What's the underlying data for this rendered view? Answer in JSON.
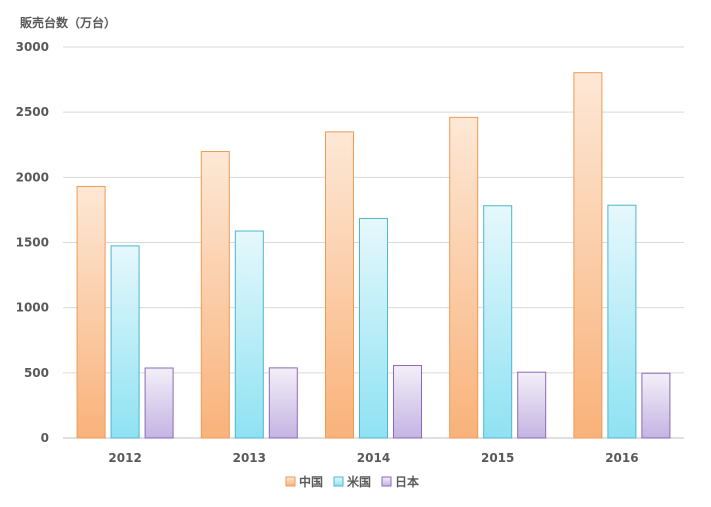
{
  "chart_data": {
    "type": "bar",
    "title": "",
    "ylabel": "販売台数（万台）",
    "xlabel": "",
    "categories": [
      "2012",
      "2013",
      "2014",
      "2015",
      "2016"
    ],
    "ylim": [
      0,
      3000
    ],
    "yticks": [
      0,
      500,
      1000,
      1500,
      2000,
      2500,
      3000
    ],
    "grid": true,
    "legend_position": "bottom",
    "series": [
      {
        "name": "中国",
        "values": [
          1930,
          2198,
          2349,
          2460,
          2803
        ],
        "color_top": "#fde8d6",
        "color_bottom": "#f9b27a",
        "stroke": "#ed9b55"
      },
      {
        "name": "米国",
        "values": [
          1474,
          1588,
          1684,
          1782,
          1786
        ],
        "color_top": "#e6f8fc",
        "color_bottom": "#8ee2f3",
        "stroke": "#4fb6cc"
      },
      {
        "name": "日本",
        "values": [
          537,
          538,
          556,
          505,
          497
        ],
        "color_top": "#f3eff8",
        "color_bottom": "#c4b4e3",
        "stroke": "#8a6ab8"
      }
    ]
  }
}
